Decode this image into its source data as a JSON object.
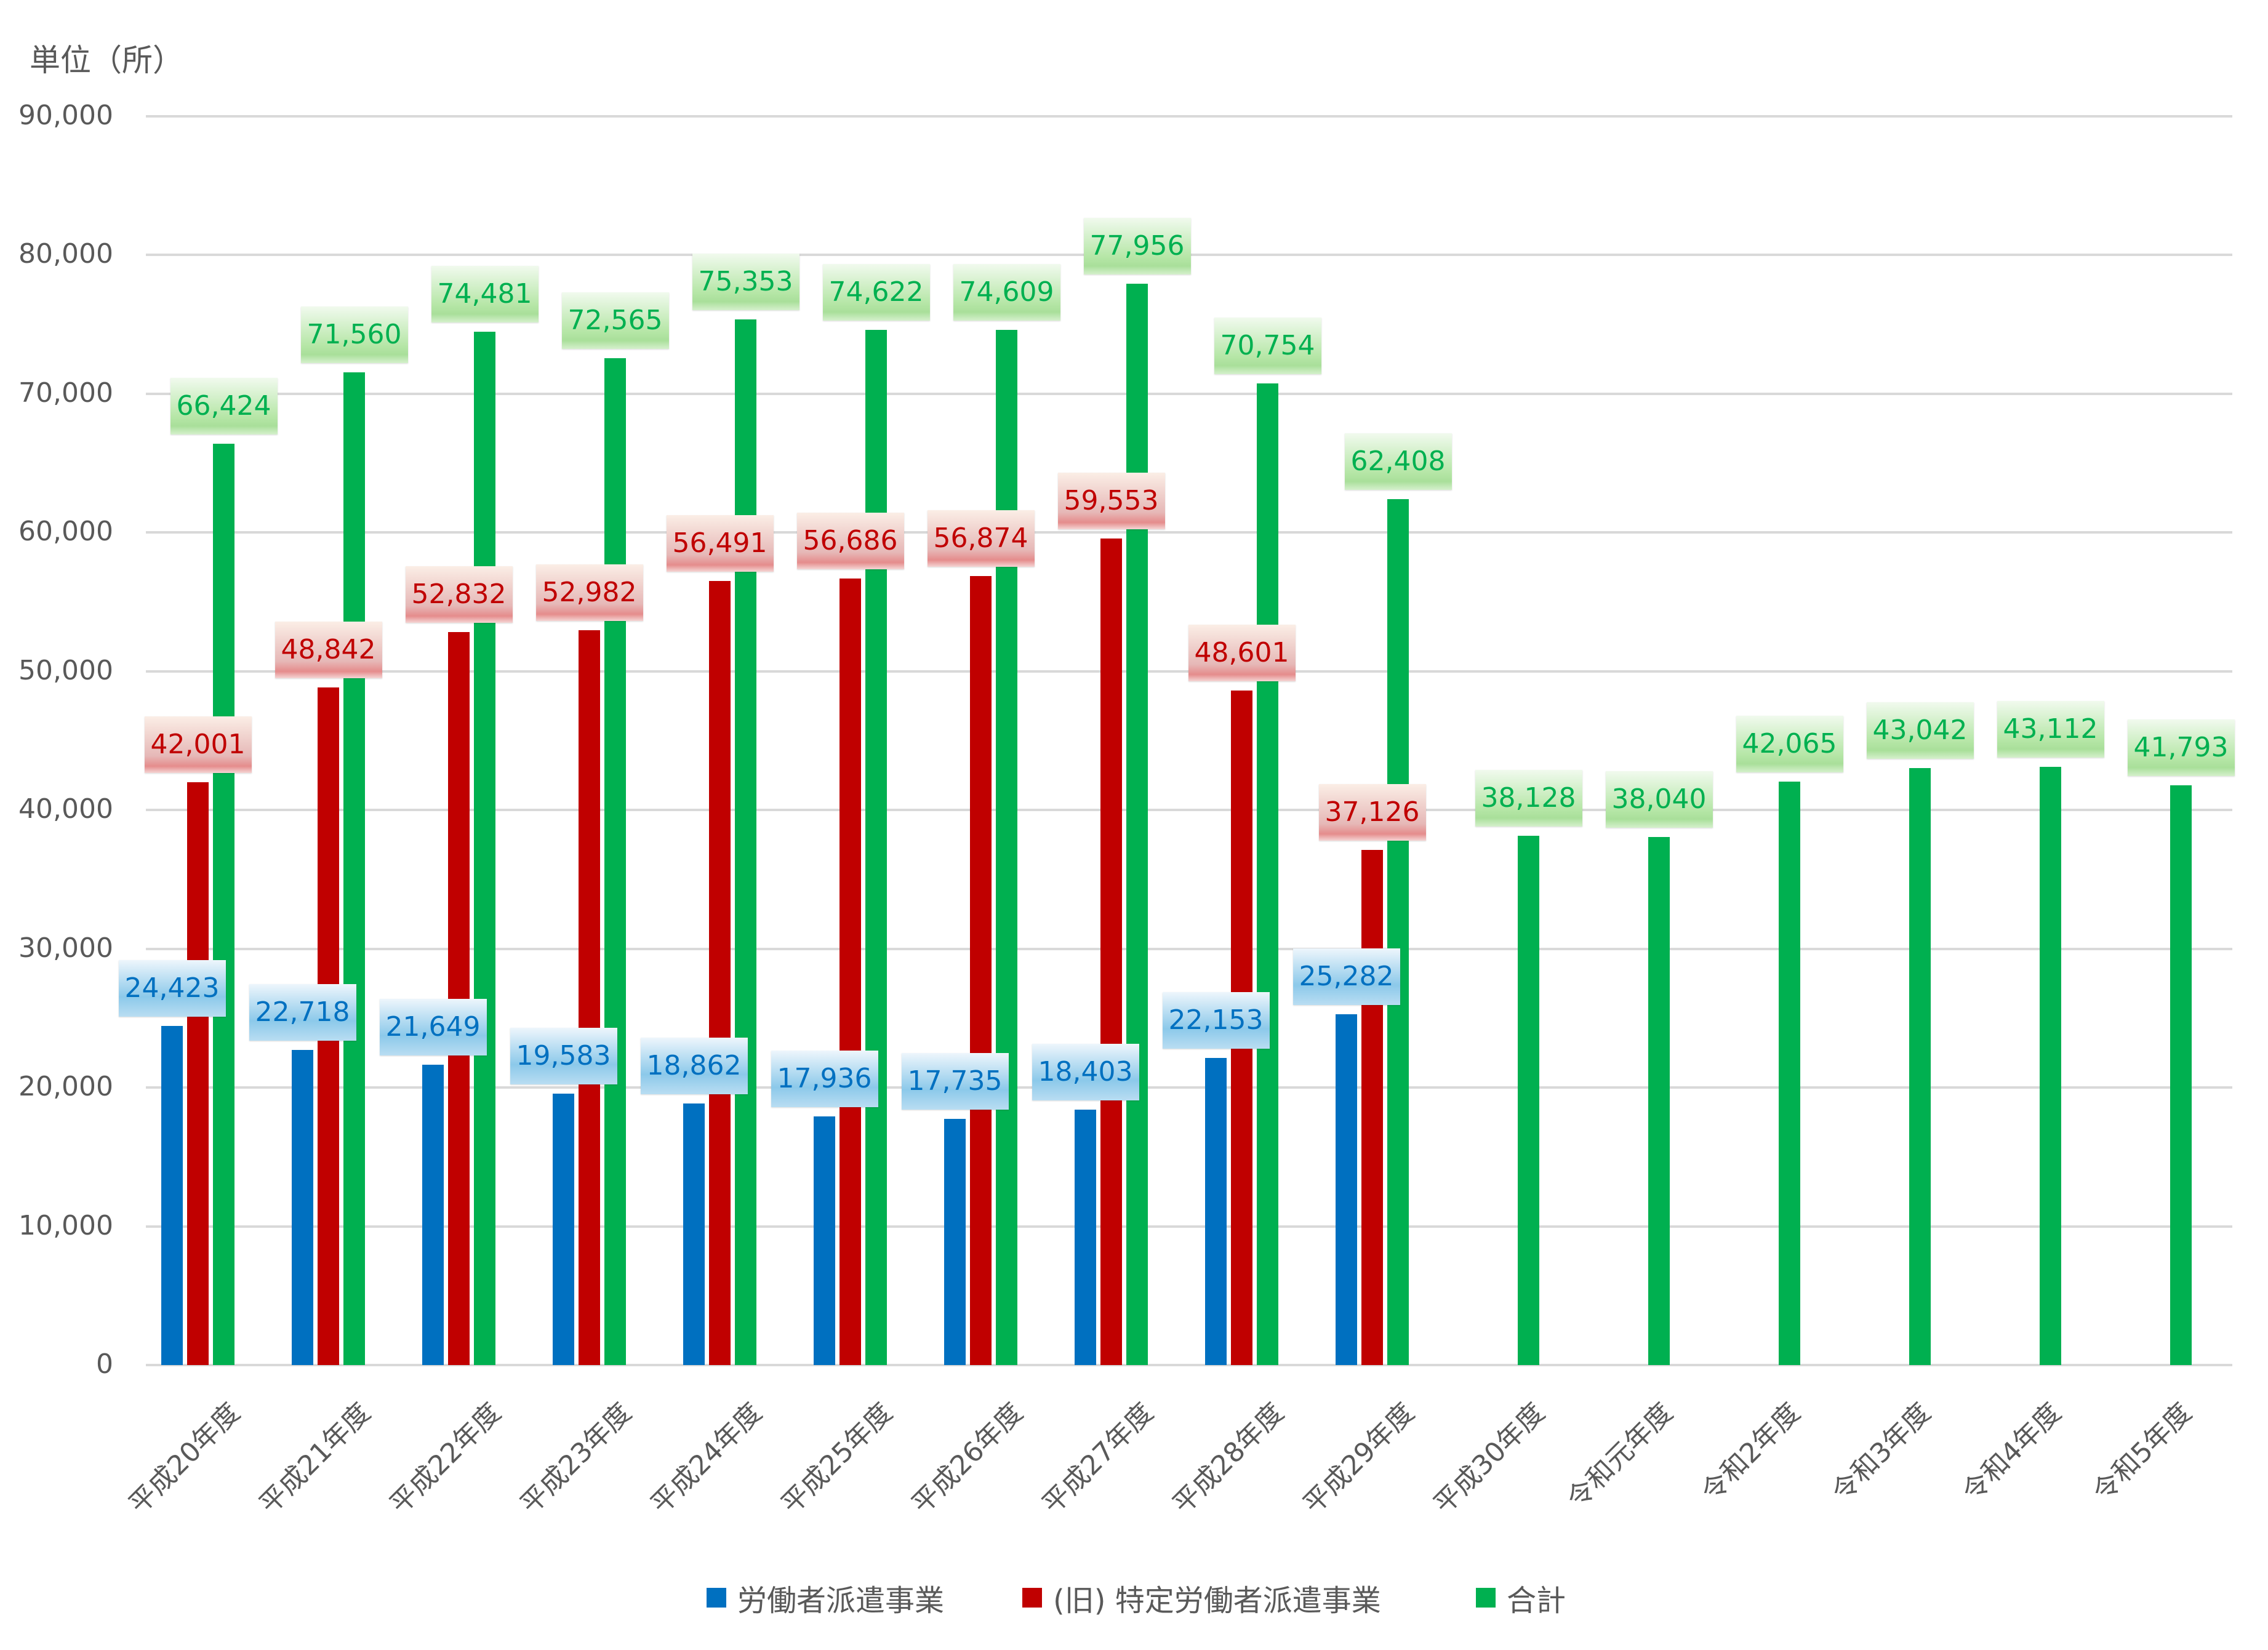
{
  "chart_data": {
    "type": "bar",
    "title": "",
    "unit_label": "単位（所）",
    "xlabel": "",
    "ylabel": "単位（所）",
    "ylim": [
      0,
      90000
    ],
    "yticks": [
      0,
      10000,
      20000,
      30000,
      40000,
      50000,
      60000,
      70000,
      80000,
      90000
    ],
    "ytick_labels": [
      "0",
      "10,000",
      "20,000",
      "30,000",
      "40,000",
      "50,000",
      "60,000",
      "70,000",
      "80,000",
      "90,000"
    ],
    "grid": true,
    "legend_position": "bottom",
    "categories": [
      "平成20年度",
      "平成21年度",
      "平成22年度",
      "平成23年度",
      "平成24年度",
      "平成25年度",
      "平成26年度",
      "平成27年度",
      "平成28年度",
      "平成29年度",
      "平成30年度",
      "令和元年度",
      "令和2年度",
      "令和3年度",
      "令和4年度",
      "令和5年度"
    ],
    "series": [
      {
        "name": "労働者派遣事業",
        "color": "#0070c0",
        "values": [
          24423,
          22718,
          21649,
          19583,
          18862,
          17936,
          17735,
          18403,
          22153,
          25282,
          null,
          null,
          null,
          null,
          null,
          null
        ]
      },
      {
        "name": "(旧) 特定労働者派遣事業",
        "color": "#c00000",
        "values": [
          42001,
          48842,
          52832,
          52982,
          56491,
          56686,
          56874,
          59553,
          48601,
          37126,
          null,
          null,
          null,
          null,
          null,
          null
        ]
      },
      {
        "name": "合計",
        "color": "#00b050",
        "values": [
          66424,
          71560,
          74481,
          72565,
          75353,
          74622,
          74609,
          77956,
          70754,
          62408,
          38128,
          38040,
          42065,
          43042,
          43112,
          41793
        ]
      }
    ]
  },
  "legend": {
    "items": [
      {
        "label": "労働者派遣事業",
        "color": "#0070c0"
      },
      {
        "label": "(旧) 特定労働者派遣事業",
        "color": "#c00000"
      },
      {
        "label": "合計",
        "color": "#00b050"
      }
    ]
  }
}
